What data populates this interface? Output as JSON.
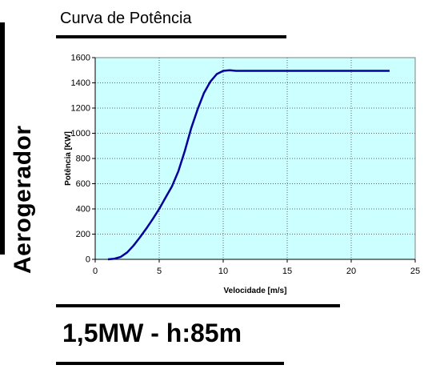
{
  "side_title": "Aerogerador",
  "spec_label": "1,5MW - h:85m",
  "colors": {
    "plot_background": "#ccffff",
    "line": "#00009c",
    "grid": "#666666"
  },
  "chart_data": {
    "type": "line",
    "title": "Curva de Potência",
    "xlabel": "Velocidade [m/s]",
    "ylabel": "Potência [KW]",
    "xlim": [
      0,
      25
    ],
    "ylim": [
      0,
      1600
    ],
    "xticks": [
      0,
      5,
      10,
      15,
      20,
      25
    ],
    "yticks": [
      0,
      200,
      400,
      600,
      800,
      1000,
      1200,
      1400,
      1600
    ],
    "grid": true,
    "series": [
      {
        "x": [
          1,
          1.5,
          2,
          2.5,
          3,
          3.5,
          4,
          4.5,
          5,
          5.5,
          6,
          6.5,
          7,
          7.5,
          8,
          8.5,
          9,
          9.5,
          10,
          10.5,
          11,
          12,
          13,
          14,
          15,
          16,
          17,
          18,
          19,
          20,
          21,
          22,
          23
        ],
        "y": [
          0,
          5,
          20,
          55,
          110,
          175,
          245,
          320,
          400,
          490,
          580,
          700,
          860,
          1040,
          1190,
          1320,
          1410,
          1470,
          1495,
          1500,
          1495,
          1495,
          1495,
          1495,
          1495,
          1495,
          1495,
          1495,
          1495,
          1495,
          1495,
          1495,
          1495
        ]
      }
    ]
  }
}
